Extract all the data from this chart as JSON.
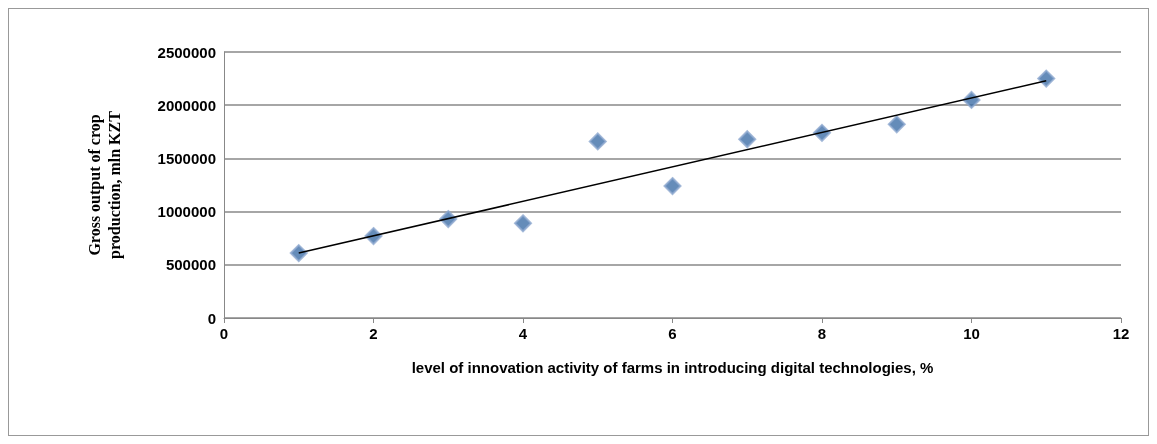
{
  "chart_data": {
    "type": "scatter",
    "xlabel": "level of innovation activity of farms in introducing digital technologies, %",
    "ylabel": "Gross output of crop production, mln KZT",
    "x": [
      1,
      2,
      3,
      4,
      5,
      6,
      7,
      8,
      9,
      10,
      11
    ],
    "xlim": [
      0,
      12
    ],
    "xticks": [
      0,
      2,
      4,
      6,
      8,
      10,
      12
    ],
    "ylim": [
      0,
      2500000
    ],
    "yticks": [
      0,
      500000,
      1000000,
      1500000,
      2000000,
      2500000
    ],
    "grid": "y",
    "marker": "diamond",
    "series": [
      {
        "color": "#3f6fa8",
        "values": [
          610000,
          770000,
          930000,
          890000,
          1660000,
          1240000,
          1680000,
          1740000,
          1820000,
          2050000,
          2250000
        ]
      },
      {
        "type": "line",
        "x": [
          1,
          11
        ],
        "color": "#000000",
        "marker": "none",
        "line_style": "solid",
        "values": [
          610000,
          2230000
        ]
      }
    ]
  }
}
